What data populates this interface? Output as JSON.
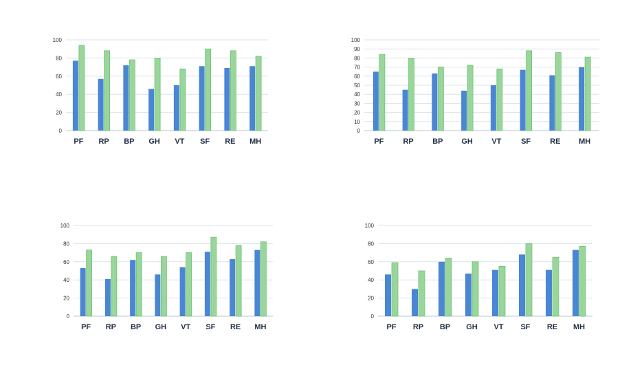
{
  "colors": {
    "series_1": "#4a86d4",
    "series_2": "#9ad69c",
    "series_2_edge": "#6cc172",
    "grid": "#d9e3ec"
  },
  "chart_data": [
    {
      "type": "bar",
      "categories": [
        "PF",
        "RP",
        "BP",
        "GH",
        "VT",
        "SF",
        "RE",
        "MH"
      ],
      "series": [
        {
          "values": [
            77,
            57,
            72,
            46,
            50,
            71,
            69,
            71
          ]
        },
        {
          "values": [
            94,
            88,
            78,
            80,
            68,
            90,
            88,
            82
          ]
        }
      ],
      "ylim": [
        0,
        100
      ],
      "yticks": [
        0,
        20,
        40,
        60,
        80,
        100
      ],
      "grid": true,
      "legend": "none"
    },
    {
      "type": "bar",
      "categories": [
        "PF",
        "RP",
        "BP",
        "GH",
        "VT",
        "SF",
        "RE",
        "MH"
      ],
      "series": [
        {
          "values": [
            65,
            45,
            63,
            44,
            50,
            67,
            61,
            70
          ]
        },
        {
          "values": [
            84,
            80,
            70,
            72,
            68,
            88,
            86,
            81
          ]
        }
      ],
      "ylim": [
        0,
        100
      ],
      "yticks": [
        0,
        10,
        20,
        30,
        40,
        50,
        60,
        70,
        80,
        90,
        100
      ],
      "grid": true,
      "legend": "none"
    },
    {
      "type": "bar",
      "categories": [
        "PF",
        "RP",
        "BP",
        "GH",
        "VT",
        "SF",
        "RE",
        "MH"
      ],
      "series": [
        {
          "values": [
            53,
            41,
            62,
            46,
            54,
            71,
            63,
            73
          ]
        },
        {
          "values": [
            73,
            66,
            70,
            66,
            70,
            87,
            78,
            82
          ]
        }
      ],
      "ylim": [
        0,
        100
      ],
      "yticks": [
        0,
        20,
        40,
        60,
        80,
        100
      ],
      "grid": true,
      "legend": "none"
    },
    {
      "type": "bar",
      "categories": [
        "PF",
        "RP",
        "BP",
        "GH",
        "VT",
        "SF",
        "RE",
        "MH"
      ],
      "series": [
        {
          "values": [
            46,
            30,
            60,
            47,
            51,
            68,
            51,
            73
          ]
        },
        {
          "values": [
            59,
            50,
            64,
            60,
            55,
            80,
            65,
            77
          ]
        }
      ],
      "ylim": [
        0,
        100
      ],
      "yticks": [
        0,
        20,
        40,
        60,
        80,
        100
      ],
      "grid": true,
      "legend": "none"
    }
  ]
}
